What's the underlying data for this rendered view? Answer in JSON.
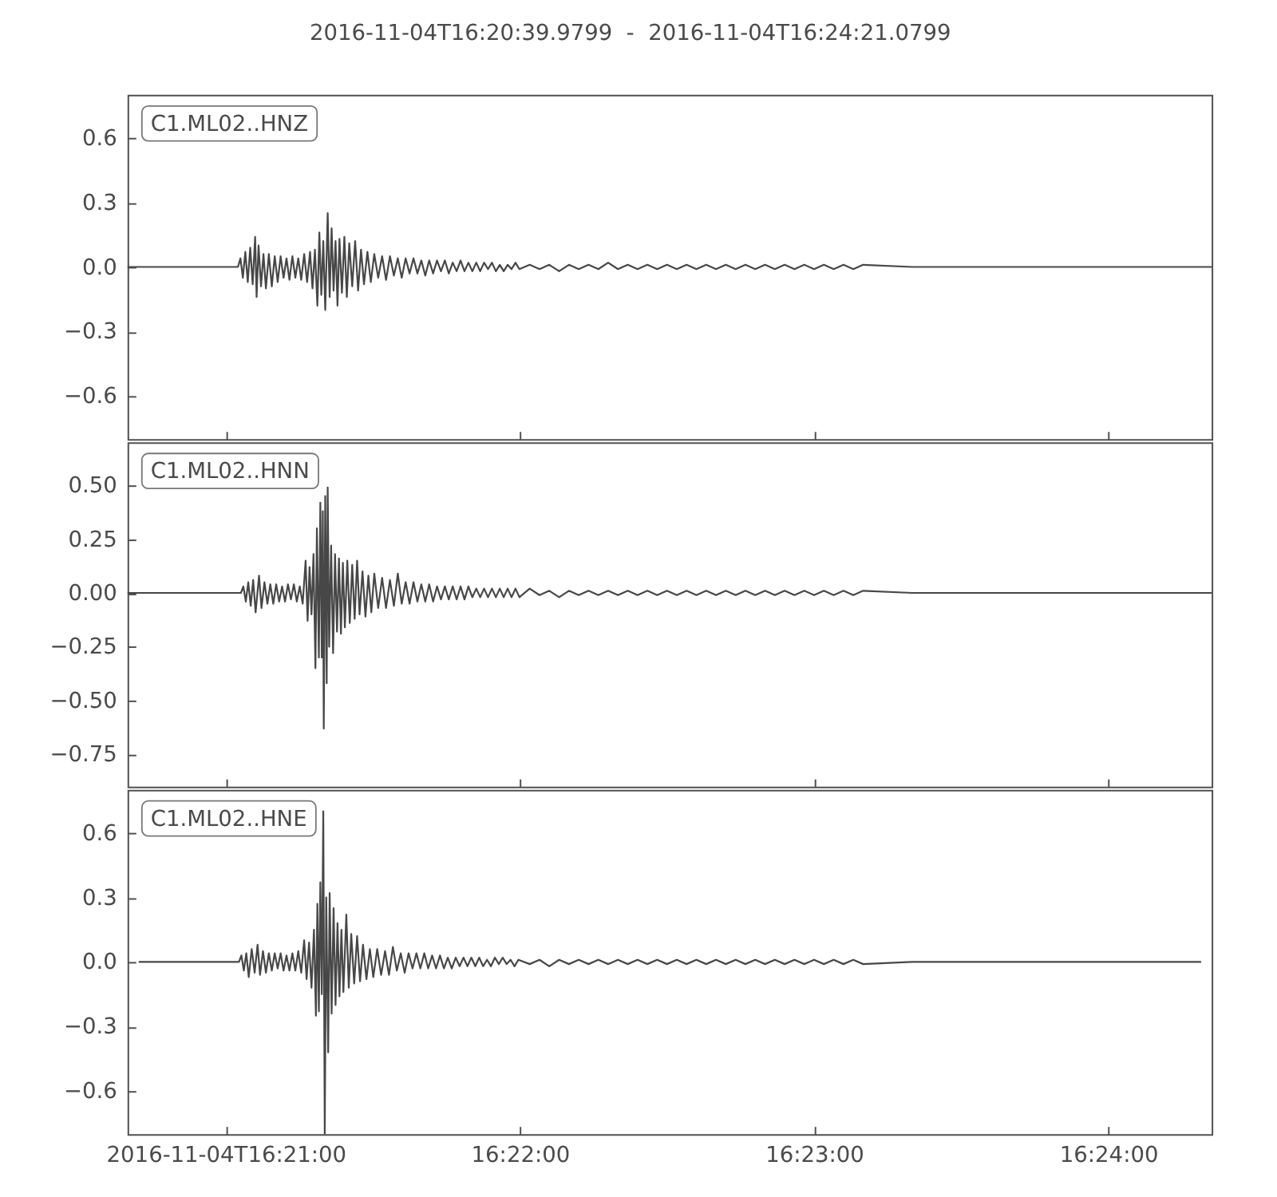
{
  "chart_data": [
    {
      "type": "line",
      "title": "2016-11-04T16:20:39.9799  -  2016-11-04T16:24:21.0799",
      "x": [
        "2016-11-04T16:20:40",
        "2016-11-04T16:21:02.5",
        "2016-11-04T16:21:03",
        "2016-11-04T16:21:03.5",
        "2016-11-04T16:21:04",
        "2016-11-04T16:21:04.5",
        "2016-11-04T16:21:05",
        "2016-11-04T16:21:05.5",
        "2016-11-04T16:21:06",
        "2016-11-04T16:21:06.3",
        "2016-11-04T16:21:06.7",
        "2016-11-04T16:21:07.2",
        "2016-11-04T16:21:07.7",
        "2016-11-04T16:21:08.2",
        "2016-11-04T16:21:08.8",
        "2016-11-04T16:21:09.4",
        "2016-11-04T16:21:10",
        "2016-11-04T16:21:10.6",
        "2016-11-04T16:21:11.2",
        "2016-11-04T16:21:11.8",
        "2016-11-04T16:21:12.4",
        "2016-11-04T16:21:13",
        "2016-11-04T16:21:13.6",
        "2016-11-04T16:21:14.2",
        "2016-11-04T16:21:14.8",
        "2016-11-04T16:21:15.4",
        "2016-11-04T16:21:16",
        "2016-11-04T16:21:16.6",
        "2016-11-04T16:21:17.2",
        "2016-11-04T16:21:17.7",
        "2016-11-04T16:21:18.2",
        "2016-11-04T16:21:18.7",
        "2016-11-04T16:21:19.1",
        "2016-11-04T16:21:19.5",
        "2016-11-04T16:21:19.9",
        "2016-11-04T16:21:20.3",
        "2016-11-04T16:21:20.8",
        "2016-11-04T16:21:21.2",
        "2016-11-04T16:21:21.6",
        "2016-11-04T16:21:22",
        "2016-11-04T16:21:22.4",
        "2016-11-04T16:21:22.8",
        "2016-11-04T16:21:23.2",
        "2016-11-04T16:21:23.7",
        "2016-11-04T16:21:24.2",
        "2016-11-04T16:21:24.7",
        "2016-11-04T16:21:25.2",
        "2016-11-04T16:21:25.8",
        "2016-11-04T16:21:26.4",
        "2016-11-04T16:21:27",
        "2016-11-04T16:21:27.6",
        "2016-11-04T16:21:28.2",
        "2016-11-04T16:21:28.9",
        "2016-11-04T16:21:29.6",
        "2016-11-04T16:21:30.3",
        "2016-11-04T16:21:31.1",
        "2016-11-04T16:21:31.9",
        "2016-11-04T16:21:32.7",
        "2016-11-04T16:21:33.5",
        "2016-11-04T16:21:34.3",
        "2016-11-04T16:21:35.1",
        "2016-11-04T16:21:35.9",
        "2016-11-04T16:21:36.7",
        "2016-11-04T16:21:37.5",
        "2016-11-04T16:21:38.3",
        "2016-11-04T16:21:39.1",
        "2016-11-04T16:21:39.9",
        "2016-11-04T16:21:40.7",
        "2016-11-04T16:21:41.5",
        "2016-11-04T16:21:42.3",
        "2016-11-04T16:21:43.1",
        "2016-11-04T16:21:43.9",
        "2016-11-04T16:21:44.7",
        "2016-11-04T16:21:45.5",
        "2016-11-04T16:21:46.3",
        "2016-11-04T16:21:47.1",
        "2016-11-04T16:21:47.9",
        "2016-11-04T16:21:48.7",
        "2016-11-04T16:21:49.5",
        "2016-11-04T16:21:50.3",
        "2016-11-04T16:21:51.1",
        "2016-11-04T16:21:51.9",
        "2016-11-04T16:21:52.7",
        "2016-11-04T16:21:53.5",
        "2016-11-04T16:21:54.3",
        "2016-11-04T16:21:55.1",
        "2016-11-04T16:21:55.9",
        "2016-11-04T16:21:56.7",
        "2016-11-04T16:21:57.5",
        "2016-11-04T16:21:58.3",
        "2016-11-04T16:21:59.1",
        "2016-11-04T16:21:59.9",
        "2016-11-04T16:22:02",
        "2016-11-04T16:22:04",
        "2016-11-04T16:22:06",
        "2016-11-04T16:22:08",
        "2016-11-04T16:22:10",
        "2016-11-04T16:22:12",
        "2016-11-04T16:22:14",
        "2016-11-04T16:22:16",
        "2016-11-04T16:22:18",
        "2016-11-04T16:22:20",
        "2016-11-04T16:22:22",
        "2016-11-04T16:22:24",
        "2016-11-04T16:22:26",
        "2016-11-04T16:22:28",
        "2016-11-04T16:22:30",
        "2016-11-04T16:22:32",
        "2016-11-04T16:22:34",
        "2016-11-04T16:22:36",
        "2016-11-04T16:22:38",
        "2016-11-04T16:22:40",
        "2016-11-04T16:22:42",
        "2016-11-04T16:22:44",
        "2016-11-04T16:22:46",
        "2016-11-04T16:22:48",
        "2016-11-04T16:22:50",
        "2016-11-04T16:22:52",
        "2016-11-04T16:22:54",
        "2016-11-04T16:22:56",
        "2016-11-04T16:22:58",
        "2016-11-04T16:23:00",
        "2016-11-04T16:23:02",
        "2016-11-04T16:23:04",
        "2016-11-04T16:23:06",
        "2016-11-04T16:23:08",
        "2016-11-04T16:23:10",
        "2016-11-04T16:23:20",
        "2016-11-04T16:24:21"
      ],
      "series": [
        {
          "name": "C1.ML02..HNZ",
          "color": "#474747",
          "values": [
            0,
            0,
            0.04,
            -0.05,
            0.07,
            -0.07,
            0.09,
            -0.08,
            0.14,
            -0.14,
            0.1,
            -0.09,
            0.06,
            -0.1,
            0.06,
            -0.09,
            0.05,
            -0.07,
            0.05,
            -0.05,
            0.04,
            -0.06,
            0.05,
            -0.05,
            0.04,
            -0.06,
            0.06,
            -0.07,
            0.07,
            -0.1,
            0.08,
            -0.18,
            0.16,
            -0.13,
            0.12,
            -0.2,
            0.25,
            -0.14,
            0.18,
            -0.11,
            0.12,
            -0.18,
            0.13,
            -0.12,
            0.14,
            -0.14,
            0.11,
            -0.09,
            0.12,
            -0.11,
            0.08,
            -0.08,
            0.07,
            -0.07,
            0.06,
            -0.05,
            0.05,
            -0.06,
            0.05,
            -0.04,
            0.04,
            -0.05,
            0.04,
            -0.03,
            0.04,
            -0.03,
            0.03,
            -0.04,
            0.03,
            -0.03,
            0.03,
            -0.02,
            0.03,
            -0.03,
            0.02,
            -0.02,
            0.03,
            -0.02,
            0.02,
            -0.02,
            0.02,
            -0.02,
            0.02,
            -0.01,
            0.02,
            -0.02,
            0.01,
            -0.02,
            0.01,
            -0.01,
            0.02,
            -0.01,
            0.01,
            -0.01,
            0.01,
            -0.02,
            0.01,
            -0.01,
            0.01,
            -0.01,
            0.02,
            -0.01,
            0.01,
            -0.01,
            0.01,
            -0.01,
            0.01,
            -0.01,
            0.01,
            -0.01,
            0.01,
            -0.01,
            0.01,
            -0.01,
            0.01,
            -0.01,
            0.01,
            -0.01,
            0.01,
            -0.01,
            0.01,
            -0.01,
            0.01,
            -0.01,
            0.01,
            -0.01,
            0.01,
            0,
            0
          ]
        }
      ],
      "xlim": [
        "2016-11-04T16:20:39.9799",
        "2016-11-04T16:24:21.0799"
      ],
      "xticks": [
        {
          "value": "2016-11-04T16:21:00",
          "label": null
        },
        {
          "value": "2016-11-04T16:22:00",
          "label": null
        },
        {
          "value": "2016-11-04T16:23:00",
          "label": null
        },
        {
          "value": "2016-11-04T16:24:00",
          "label": null
        }
      ],
      "ylim": [
        -0.8,
        0.8
      ],
      "yticks": [
        {
          "value": -0.6,
          "label": "−0.6"
        },
        {
          "value": -0.3,
          "label": "−0.3"
        },
        {
          "value": 0,
          "label": "0.0"
        },
        0.3,
        0.6
      ],
      "tick_labels": "y"
    },
    {
      "type": "line",
      "x": [
        "2016-11-04T16:20:40",
        "2016-11-04T16:21:03.1",
        "2016-11-04T16:21:03.6",
        "2016-11-04T16:21:04.1",
        "2016-11-04T16:21:04.6",
        "2016-11-04T16:21:05.1",
        "2016-11-04T16:21:05.6",
        "2016-11-04T16:21:06.1",
        "2016-11-04T16:21:06.8",
        "2016-11-04T16:21:07.3",
        "2016-11-04T16:21:07.9",
        "2016-11-04T16:21:08.5",
        "2016-11-04T16:21:09.1",
        "2016-11-04T16:21:09.7",
        "2016-11-04T16:21:10.3",
        "2016-11-04T16:21:10.9",
        "2016-11-04T16:21:11.5",
        "2016-11-04T16:21:12.1",
        "2016-11-04T16:21:12.7",
        "2016-11-04T16:21:13.3",
        "2016-11-04T16:21:13.9",
        "2016-11-04T16:21:14.5",
        "2016-11-04T16:21:15.1",
        "2016-11-04T16:21:15.7",
        "2016-11-04T16:21:16.3",
        "2016-11-04T16:21:16.7",
        "2016-11-04T16:21:17.1",
        "2016-11-04T16:21:17.5",
        "2016-11-04T16:21:17.9",
        "2016-11-04T16:21:18.3",
        "2016-11-04T16:21:18.6",
        "2016-11-04T16:21:19",
        "2016-11-04T16:21:19.3",
        "2016-11-04T16:21:19.6",
        "2016-11-04T16:21:19.8",
        "2016-11-04T16:21:20",
        "2016-11-04T16:21:20.3",
        "2016-11-04T16:21:20.6",
        "2016-11-04T16:21:20.8",
        "2016-11-04T16:21:21.1",
        "2016-11-04T16:21:21.5",
        "2016-11-04T16:21:21.9",
        "2016-11-04T16:21:22.3",
        "2016-11-04T16:21:22.7",
        "2016-11-04T16:21:23.1",
        "2016-11-04T16:21:23.5",
        "2016-11-04T16:21:23.9",
        "2016-11-04T16:21:24.3",
        "2016-11-04T16:21:24.8",
        "2016-11-04T16:21:25.3",
        "2016-11-04T16:21:25.8",
        "2016-11-04T16:21:26.3",
        "2016-11-04T16:21:26.8",
        "2016-11-04T16:21:27.3",
        "2016-11-04T16:21:27.9",
        "2016-11-04T16:21:28.5",
        "2016-11-04T16:21:29.1",
        "2016-11-04T16:21:29.7",
        "2016-11-04T16:21:30.3",
        "2016-11-04T16:21:31.1",
        "2016-11-04T16:21:31.9",
        "2016-11-04T16:21:32.7",
        "2016-11-04T16:21:33.5",
        "2016-11-04T16:21:34.3",
        "2016-11-04T16:21:35.1",
        "2016-11-04T16:21:35.9",
        "2016-11-04T16:21:36.7",
        "2016-11-04T16:21:37.5",
        "2016-11-04T16:21:38.3",
        "2016-11-04T16:21:39.1",
        "2016-11-04T16:21:39.9",
        "2016-11-04T16:21:40.7",
        "2016-11-04T16:21:41.5",
        "2016-11-04T16:21:42.3",
        "2016-11-04T16:21:43.1",
        "2016-11-04T16:21:43.9",
        "2016-11-04T16:21:44.7",
        "2016-11-04T16:21:45.5",
        "2016-11-04T16:21:46.3",
        "2016-11-04T16:21:47.1",
        "2016-11-04T16:21:47.9",
        "2016-11-04T16:21:48.7",
        "2016-11-04T16:21:49.5",
        "2016-11-04T16:21:50.3",
        "2016-11-04T16:21:51.1",
        "2016-11-04T16:21:51.9",
        "2016-11-04T16:21:52.7",
        "2016-11-04T16:21:53.5",
        "2016-11-04T16:21:54.3",
        "2016-11-04T16:21:55.1",
        "2016-11-04T16:21:55.9",
        "2016-11-04T16:21:56.7",
        "2016-11-04T16:21:57.5",
        "2016-11-04T16:21:58.3",
        "2016-11-04T16:21:59.1",
        "2016-11-04T16:21:59.9",
        "2016-11-04T16:22:02",
        "2016-11-04T16:22:04",
        "2016-11-04T16:22:06",
        "2016-11-04T16:22:08",
        "2016-11-04T16:22:10",
        "2016-11-04T16:22:12",
        "2016-11-04T16:22:14",
        "2016-11-04T16:22:16",
        "2016-11-04T16:22:18",
        "2016-11-04T16:22:20",
        "2016-11-04T16:22:22",
        "2016-11-04T16:22:24",
        "2016-11-04T16:22:26",
        "2016-11-04T16:22:28",
        "2016-11-04T16:22:30",
        "2016-11-04T16:22:32",
        "2016-11-04T16:22:34",
        "2016-11-04T16:22:36",
        "2016-11-04T16:22:38",
        "2016-11-04T16:22:40",
        "2016-11-04T16:22:42",
        "2016-11-04T16:22:44",
        "2016-11-04T16:22:46",
        "2016-11-04T16:22:48",
        "2016-11-04T16:22:50",
        "2016-11-04T16:22:52",
        "2016-11-04T16:22:54",
        "2016-11-04T16:22:56",
        "2016-11-04T16:22:58",
        "2016-11-04T16:23:00",
        "2016-11-04T16:23:02",
        "2016-11-04T16:23:04",
        "2016-11-04T16:23:06",
        "2016-11-04T16:23:08",
        "2016-11-04T16:23:10",
        "2016-11-04T16:23:20",
        "2016-11-04T16:24:21"
      ],
      "series": [
        {
          "name": "C1.ML02..HNN",
          "color": "#474747",
          "values": [
            0,
            0,
            0.03,
            -0.04,
            0.05,
            -0.06,
            0.06,
            -0.09,
            0.08,
            -0.07,
            0.05,
            -0.05,
            0.04,
            -0.05,
            0.04,
            -0.04,
            0.03,
            -0.04,
            0.04,
            -0.03,
            0.04,
            -0.04,
            0.03,
            -0.05,
            0.15,
            -0.13,
            0.12,
            -0.1,
            0.18,
            -0.35,
            0.3,
            -0.3,
            0.42,
            -0.3,
            0.38,
            -0.63,
            0.45,
            -0.42,
            0.49,
            -0.25,
            0.22,
            -0.28,
            0.18,
            -0.18,
            0.16,
            -0.19,
            0.14,
            -0.16,
            0.15,
            -0.14,
            0.13,
            -0.12,
            0.15,
            -0.1,
            0.1,
            -0.11,
            0.08,
            -0.09,
            0.09,
            -0.07,
            0.07,
            -0.07,
            0.06,
            -0.06,
            0.09,
            -0.05,
            0.05,
            -0.05,
            0.05,
            -0.04,
            0.04,
            -0.04,
            0.04,
            -0.04,
            0.03,
            -0.03,
            0.03,
            -0.03,
            0.03,
            -0.03,
            0.03,
            -0.03,
            0.03,
            -0.02,
            0.02,
            -0.02,
            0.02,
            -0.02,
            0.02,
            -0.02,
            0.02,
            -0.02,
            0.02,
            -0.02,
            0.02,
            -0.02,
            0.02,
            -0.01,
            0.01,
            -0.02,
            0.01,
            -0.01,
            0.01,
            -0.01,
            0.01,
            -0.01,
            0.01,
            -0.01,
            0.01,
            -0.01,
            0.01,
            -0.01,
            0.01,
            -0.01,
            0.01,
            -0.01,
            0.01,
            -0.01,
            0.01,
            -0.01,
            0.01,
            -0.01,
            0.01,
            -0.01,
            0.01,
            -0.01,
            0.01,
            -0.01,
            0.01,
            -0.01,
            0.01,
            0,
            0
          ]
        }
      ],
      "xlim": [
        "2016-11-04T16:20:39.9799",
        "2016-11-04T16:24:21.0799"
      ],
      "xticks": [
        {
          "value": "2016-11-04T16:21:00",
          "label": null
        },
        {
          "value": "2016-11-04T16:22:00",
          "label": null
        },
        {
          "value": "2016-11-04T16:23:00",
          "label": null
        },
        {
          "value": "2016-11-04T16:24:00",
          "label": null
        }
      ],
      "ylim": [
        -0.9,
        0.7
      ],
      "yticks": [
        {
          "value": -0.75,
          "label": "−0.75"
        },
        {
          "value": -0.5,
          "label": "−0.50"
        },
        {
          "value": -0.25,
          "label": "−0.25"
        },
        {
          "value": 0,
          "label": "0.00"
        },
        0.25,
        {
          "value": 0.5,
          "label": "0.50"
        }
      ],
      "tick_labels": "y"
    },
    {
      "type": "line",
      "x": [
        "2016-11-04T16:20:42.4",
        "2016-11-04T16:21:02.7",
        "2016-11-04T16:21:03.2",
        "2016-11-04T16:21:03.7",
        "2016-11-04T16:21:04.2",
        "2016-11-04T16:21:04.7",
        "2016-11-04T16:21:05.3",
        "2016-11-04T16:21:05.9",
        "2016-11-04T16:21:06.5",
        "2016-11-04T16:21:07",
        "2016-11-04T16:21:07.6",
        "2016-11-04T16:21:08.2",
        "2016-11-04T16:21:08.8",
        "2016-11-04T16:21:09.4",
        "2016-11-04T16:21:10",
        "2016-11-04T16:21:10.6",
        "2016-11-04T16:21:11.2",
        "2016-11-04T16:21:11.8",
        "2016-11-04T16:21:12.4",
        "2016-11-04T16:21:13",
        "2016-11-04T16:21:13.6",
        "2016-11-04T16:21:14.2",
        "2016-11-04T16:21:14.8",
        "2016-11-04T16:21:15.4",
        "2016-11-04T16:21:16",
        "2016-11-04T16:21:16.5",
        "2016-11-04T16:21:17",
        "2016-11-04T16:21:17.5",
        "2016-11-04T16:21:18",
        "2016-11-04T16:21:18.4",
        "2016-11-04T16:21:18.7",
        "2016-11-04T16:21:19",
        "2016-11-04T16:21:19.3",
        "2016-11-04T16:21:19.6",
        "2016-11-04T16:21:19.9",
        "2016-11-04T16:21:20.2",
        "2016-11-04T16:21:20.5",
        "2016-11-04T16:21:20.9",
        "2016-11-04T16:21:21.2",
        "2016-11-04T16:21:21.6",
        "2016-11-04T16:21:22",
        "2016-11-04T16:21:22.4",
        "2016-11-04T16:21:22.8",
        "2016-11-04T16:21:23.2",
        "2016-11-04T16:21:23.6",
        "2016-11-04T16:21:24",
        "2016-11-04T16:21:24.6",
        "2016-11-04T16:21:25.1",
        "2016-11-04T16:21:25.6",
        "2016-11-04T16:21:26.2",
        "2016-11-04T16:21:26.8",
        "2016-11-04T16:21:27.4",
        "2016-11-04T16:21:28",
        "2016-11-04T16:21:28.7",
        "2016-11-04T16:21:29.4",
        "2016-11-04T16:21:30.1",
        "2016-11-04T16:21:30.9",
        "2016-11-04T16:21:31.7",
        "2016-11-04T16:21:32.5",
        "2016-11-04T16:21:33.3",
        "2016-11-04T16:21:34.1",
        "2016-11-04T16:21:34.9",
        "2016-11-04T16:21:35.7",
        "2016-11-04T16:21:36.5",
        "2016-11-04T16:21:37.3",
        "2016-11-04T16:21:38.1",
        "2016-11-04T16:21:38.9",
        "2016-11-04T16:21:39.7",
        "2016-11-04T16:21:40.5",
        "2016-11-04T16:21:41.3",
        "2016-11-04T16:21:42.1",
        "2016-11-04T16:21:42.9",
        "2016-11-04T16:21:43.7",
        "2016-11-04T16:21:44.5",
        "2016-11-04T16:21:45.3",
        "2016-11-04T16:21:46.1",
        "2016-11-04T16:21:46.9",
        "2016-11-04T16:21:47.7",
        "2016-11-04T16:21:48.5",
        "2016-11-04T16:21:49.3",
        "2016-11-04T16:21:50.1",
        "2016-11-04T16:21:50.9",
        "2016-11-04T16:21:51.7",
        "2016-11-04T16:21:52.5",
        "2016-11-04T16:21:53.3",
        "2016-11-04T16:21:54.1",
        "2016-11-04T16:21:54.9",
        "2016-11-04T16:21:55.7",
        "2016-11-04T16:21:56.5",
        "2016-11-04T16:21:57.3",
        "2016-11-04T16:21:58.1",
        "2016-11-04T16:21:58.9",
        "2016-11-04T16:21:59.7",
        "2016-11-04T16:22:02",
        "2016-11-04T16:22:04",
        "2016-11-04T16:22:06",
        "2016-11-04T16:22:08",
        "2016-11-04T16:22:10",
        "2016-11-04T16:22:12",
        "2016-11-04T16:22:14",
        "2016-11-04T16:22:16",
        "2016-11-04T16:22:18",
        "2016-11-04T16:22:20",
        "2016-11-04T16:22:22",
        "2016-11-04T16:22:24",
        "2016-11-04T16:22:26",
        "2016-11-04T16:22:28",
        "2016-11-04T16:22:30",
        "2016-11-04T16:22:32",
        "2016-11-04T16:22:34",
        "2016-11-04T16:22:36",
        "2016-11-04T16:22:38",
        "2016-11-04T16:22:40",
        "2016-11-04T16:22:42",
        "2016-11-04T16:22:44",
        "2016-11-04T16:22:46",
        "2016-11-04T16:22:48",
        "2016-11-04T16:22:50",
        "2016-11-04T16:22:52",
        "2016-11-04T16:22:54",
        "2016-11-04T16:22:56",
        "2016-11-04T16:22:58",
        "2016-11-04T16:23:00",
        "2016-11-04T16:23:02",
        "2016-11-04T16:23:04",
        "2016-11-04T16:23:06",
        "2016-11-04T16:23:08",
        "2016-11-04T16:23:10",
        "2016-11-04T16:23:20",
        "2016-11-04T16:24:18.8"
      ],
      "series": [
        {
          "name": "C1.ML02..HNE",
          "color": "#474747",
          "values": [
            0,
            0,
            0.03,
            -0.04,
            0.04,
            -0.07,
            0.06,
            -0.05,
            0.08,
            -0.06,
            0.05,
            -0.05,
            0.04,
            -0.04,
            0.04,
            -0.03,
            0.04,
            -0.04,
            0.03,
            -0.04,
            0.04,
            -0.04,
            0.05,
            -0.05,
            0.1,
            -0.08,
            0.09,
            -0.12,
            0.15,
            -0.25,
            0.27,
            -0.23,
            0.37,
            -0.15,
            0.7,
            -0.8,
            0.3,
            -0.42,
            0.32,
            -0.24,
            0.25,
            -0.2,
            0.18,
            -0.16,
            0.15,
            -0.14,
            0.22,
            -0.12,
            0.13,
            -0.1,
            0.12,
            -0.09,
            0.08,
            -0.08,
            0.06,
            -0.07,
            0.06,
            -0.06,
            0.05,
            -0.06,
            0.07,
            -0.04,
            0.04,
            -0.05,
            0.04,
            -0.03,
            0.04,
            -0.03,
            0.04,
            -0.03,
            0.03,
            -0.03,
            0.03,
            -0.03,
            0.02,
            -0.03,
            0.02,
            -0.02,
            0.02,
            -0.02,
            0.02,
            -0.02,
            0.02,
            -0.02,
            0.01,
            -0.02,
            0.02,
            -0.01,
            0.02,
            -0.01,
            0.01,
            -0.02,
            0.01,
            -0.01,
            0.01,
            -0.02,
            0.01,
            -0.01,
            0.01,
            -0.01,
            0.01,
            -0.01,
            0.01,
            -0.01,
            0.01,
            -0.01,
            0.01,
            -0.01,
            0.01,
            -0.01,
            0.01,
            -0.01,
            0.01,
            -0.01,
            0.01,
            -0.01,
            0.01,
            -0.01,
            0.01,
            -0.01,
            0.01,
            -0.01,
            0.01,
            -0.01,
            0.01,
            -0.01,
            0.01,
            -0.01,
            0,
            0
          ]
        }
      ],
      "xlim": [
        "2016-11-04T16:20:39.9799",
        "2016-11-04T16:24:21.0799"
      ],
      "xticks": [
        "2016-11-04T16:21:00",
        {
          "value": "2016-11-04T16:22:00",
          "label": "16:22:00"
        },
        {
          "value": "2016-11-04T16:23:00",
          "label": "16:23:00"
        },
        {
          "value": "2016-11-04T16:24:00",
          "label": "16:24:00"
        }
      ],
      "ylim": [
        -0.8,
        0.8
      ],
      "yticks": [
        {
          "value": -0.6,
          "label": "−0.6"
        },
        {
          "value": -0.3,
          "label": "−0.3"
        },
        {
          "value": 0,
          "label": "0.0"
        },
        0.3,
        0.6
      ]
    }
  ]
}
